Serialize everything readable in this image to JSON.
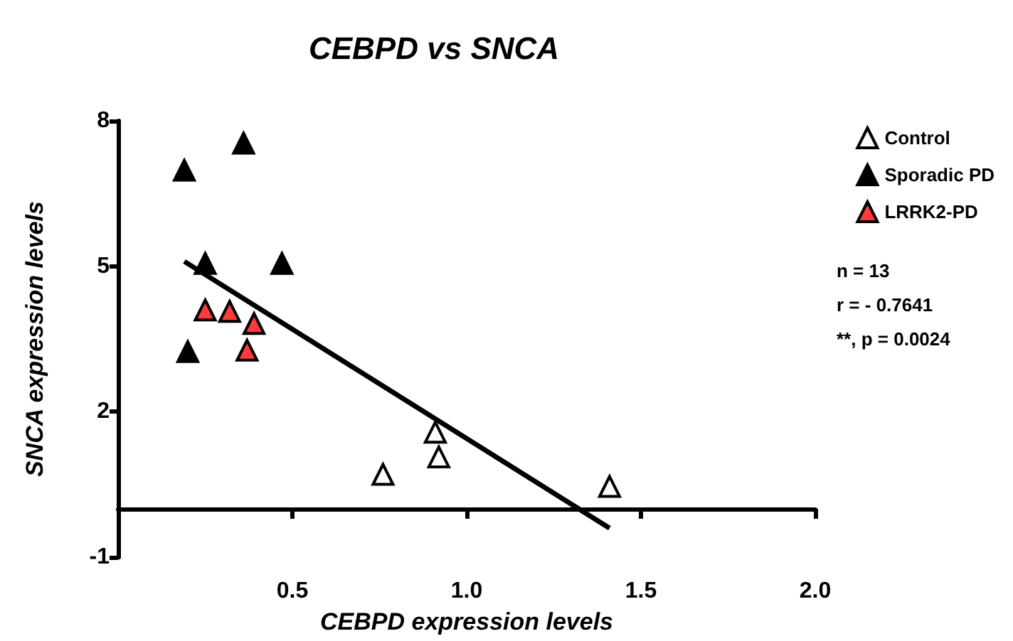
{
  "chart_data": {
    "type": "scatter",
    "title": "CEBPD vs SNCA",
    "xlabel": "CEBPD expression levels",
    "ylabel": "SNCA expression levels",
    "xlim": [
      0,
      2
    ],
    "xticks": [
      0.5,
      {
        "value": 1,
        "label": "1.0"
      },
      1.5,
      {
        "value": 2,
        "label": "2.0"
      }
    ],
    "ylim": [
      -1,
      8
    ],
    "yticks": [
      -1,
      2,
      5,
      8
    ],
    "series": [
      {
        "name": "Control",
        "color": "#ffffff",
        "x": [
          0.91,
          0.92,
          0.76,
          1.41
        ],
        "values": [
          1.58,
          1.07,
          0.71,
          0.46
        ]
      },
      {
        "name": "Sporadic PD",
        "color": "#000000",
        "x": [
          0.36,
          0.19,
          0.25,
          0.47,
          0.2
        ],
        "values": [
          7.54,
          6.98,
          5.06,
          5.06,
          3.24
        ]
      },
      {
        "name": "LRRK2-PD",
        "color": "#ff3b3b",
        "x": [
          0.25,
          0.32,
          0.39,
          0.37
        ],
        "values": [
          4.1,
          4.07,
          3.82,
          3.27
        ]
      },
      {
        "type": "line",
        "marker": "none",
        "color": "#000000",
        "x": [
          0.19,
          1.41
        ],
        "values": [
          5.1,
          -0.4
        ]
      }
    ],
    "annotations": [
      "n = 13",
      "r = - 0.7641",
      "**, p = 0.0024"
    ],
    "marker": "triangle",
    "legend": "top right",
    "grid": false
  }
}
